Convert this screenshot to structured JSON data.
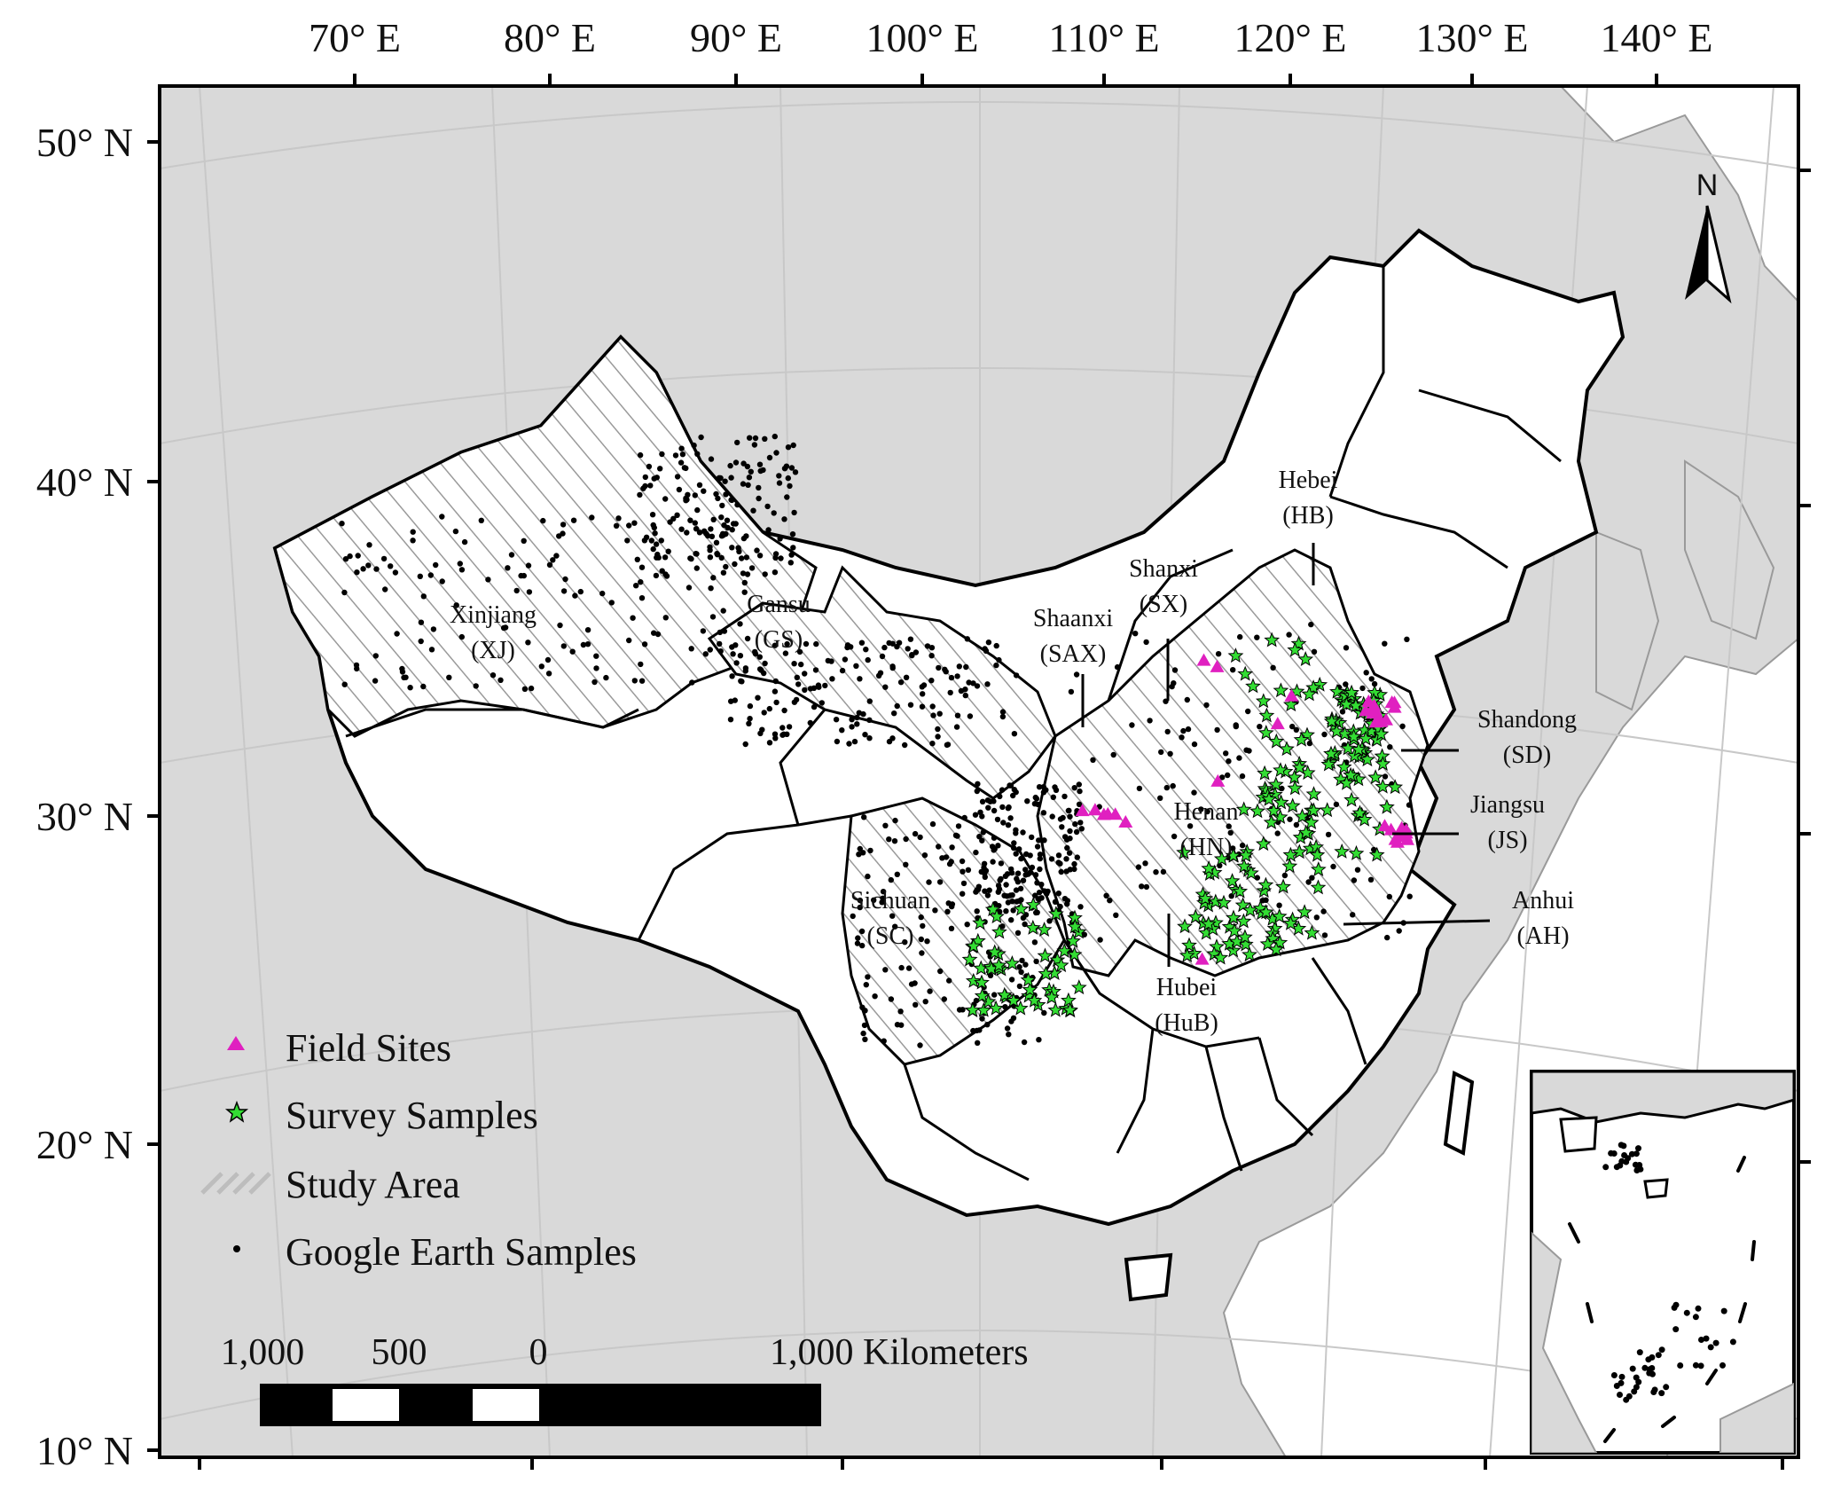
{
  "axes": {
    "top_lon_labels": [
      "70° E",
      "80° E",
      "90° E",
      "100° E",
      "110° E",
      "120° E",
      "130° E",
      "140° E"
    ],
    "left_lat_labels": [
      "50° N",
      "40° N",
      "30° N",
      "20° N",
      "10° N"
    ]
  },
  "provinces": [
    {
      "name": "Xinjiang",
      "abbr": "(XJ)"
    },
    {
      "name": "Gansu",
      "abbr": "(GS)"
    },
    {
      "name": "Shaanxi",
      "abbr": "(SAX)"
    },
    {
      "name": "Shanxi",
      "abbr": "(SX)"
    },
    {
      "name": "Hebei",
      "abbr": "(HB)"
    },
    {
      "name": "Shandong",
      "abbr": "(SD)"
    },
    {
      "name": "Jiangsu",
      "abbr": "(JS)"
    },
    {
      "name": "Anhui",
      "abbr": "(AH)"
    },
    {
      "name": "Henan",
      "abbr": "(HN)"
    },
    {
      "name": "Hubei",
      "abbr": "(HuB)"
    },
    {
      "name": "Sichuan",
      "abbr": "(SC)"
    }
  ],
  "legend": {
    "field_sites": "Field Sites",
    "survey_samples": "Survey Samples",
    "study_area": "Study Area",
    "google_earth_samples": "Google Earth Samples"
  },
  "scale_bar": {
    "labels": [
      "1,000",
      "500",
      "0",
      "1,000 Kilometers"
    ]
  },
  "north_arrow": {
    "label": "N"
  },
  "colors": {
    "land_other": "#d9d9d9",
    "china": "#ffffff",
    "field_site": "#e020c0",
    "survey_sample": "#33dd33",
    "gridline": "#c8c8c8"
  }
}
